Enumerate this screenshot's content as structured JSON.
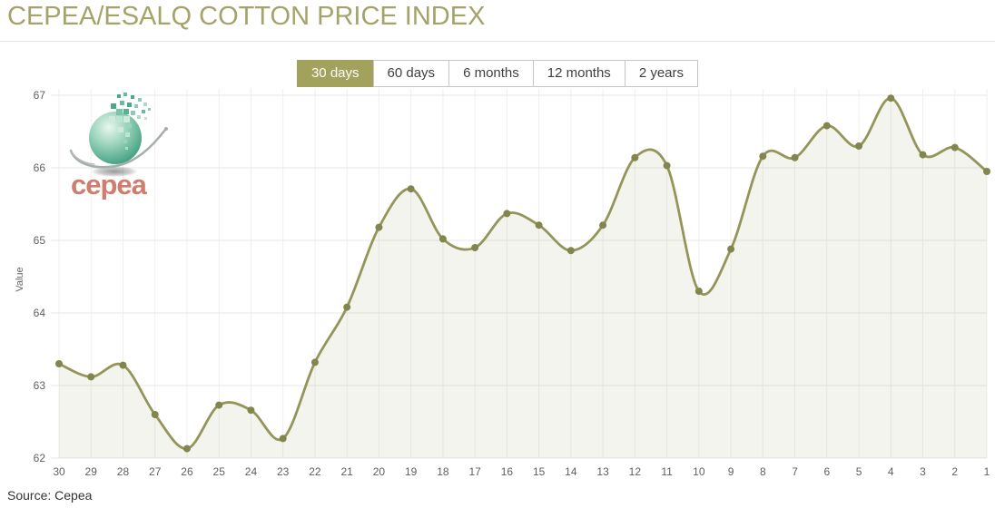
{
  "page": {
    "title": "CEPEA/ESALQ COTTON PRICE INDEX",
    "source": "Source: Cepea"
  },
  "logo": {
    "text": "cepea"
  },
  "range_buttons": [
    {
      "label": "30 days",
      "active": true
    },
    {
      "label": "60 days",
      "active": false
    },
    {
      "label": "6 months",
      "active": false
    },
    {
      "label": "12 months",
      "active": false
    },
    {
      "label": "2 years",
      "active": false
    }
  ],
  "chart_data": {
    "type": "area",
    "title": "CEPEA/ESALQ COTTON PRICE INDEX",
    "xlabel": "",
    "ylabel": "Value",
    "x": [
      30,
      29,
      28,
      27,
      26,
      25,
      24,
      23,
      22,
      21,
      20,
      19,
      18,
      17,
      16,
      15,
      14,
      13,
      12,
      11,
      10,
      9,
      8,
      7,
      6,
      5,
      4,
      3,
      2,
      1
    ],
    "values": [
      63.3,
      63.12,
      63.28,
      62.6,
      62.13,
      62.73,
      62.66,
      62.27,
      63.32,
      64.08,
      65.18,
      65.71,
      65.02,
      64.9,
      65.37,
      65.21,
      64.86,
      65.21,
      66.14,
      66.03,
      64.3,
      64.88,
      66.16,
      66.14,
      66.58,
      66.3,
      66.96,
      66.18,
      66.28,
      65.95
    ],
    "ylim": [
      62,
      67
    ],
    "yticks": [
      62,
      63,
      64,
      65,
      66,
      67
    ],
    "grid": true,
    "legend": false,
    "colors": {
      "line": "#949559",
      "marker": "#83854e",
      "fill": "rgba(148,149,89,0.10)",
      "grid_h": "#e7e7e7",
      "grid_v": "#f0efec",
      "tick_text": "#606060",
      "title": "#a3a36a",
      "active_button_bg": "#a2a25c"
    }
  }
}
